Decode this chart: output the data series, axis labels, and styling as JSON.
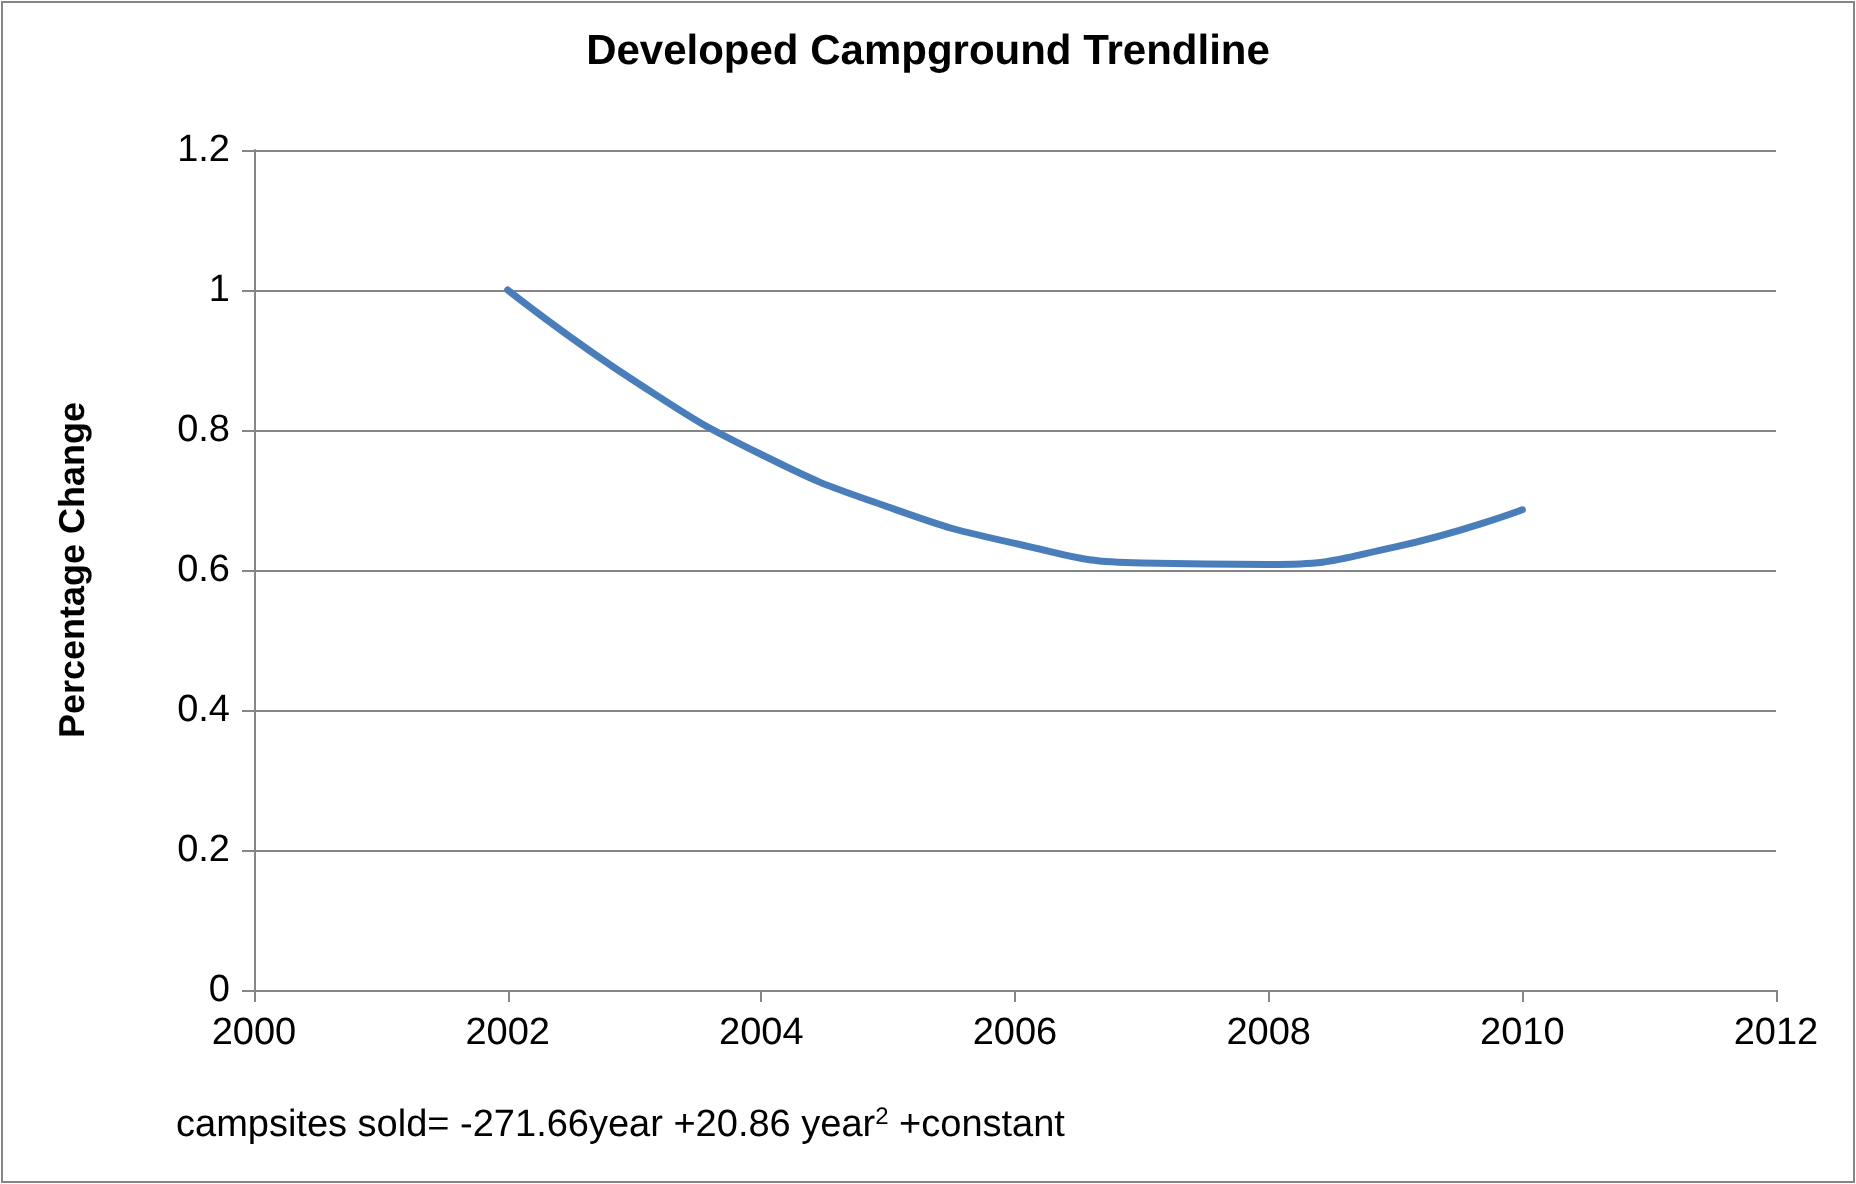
{
  "chart_data": {
    "type": "line",
    "title": "Developed Campground Trendline",
    "ylabel": "Percentage Change",
    "x": [
      2002,
      2003,
      2004,
      2005,
      2006,
      2007,
      2008,
      2009,
      2010
    ],
    "series": [
      {
        "color": "#4a7ebb",
        "values": [
          1.0,
          0.87,
          0.765,
          0.69,
          0.638,
          0.61,
          0.608,
          0.633,
          0.686
        ]
      }
    ],
    "xlim": [
      2000,
      2012
    ],
    "xticks": [
      2000,
      2002,
      2004,
      2006,
      2008,
      2010,
      2012
    ],
    "ylim": [
      0,
      1.2
    ],
    "yticks": [
      0,
      0.2,
      0.4,
      0.6,
      0.8,
      1,
      1.2
    ],
    "grid": "y",
    "marker": "none",
    "line_style": "solid",
    "annotations": [
      "campsites sold= -271.66year +20.86 year$^{2}$ +constant"
    ]
  }
}
